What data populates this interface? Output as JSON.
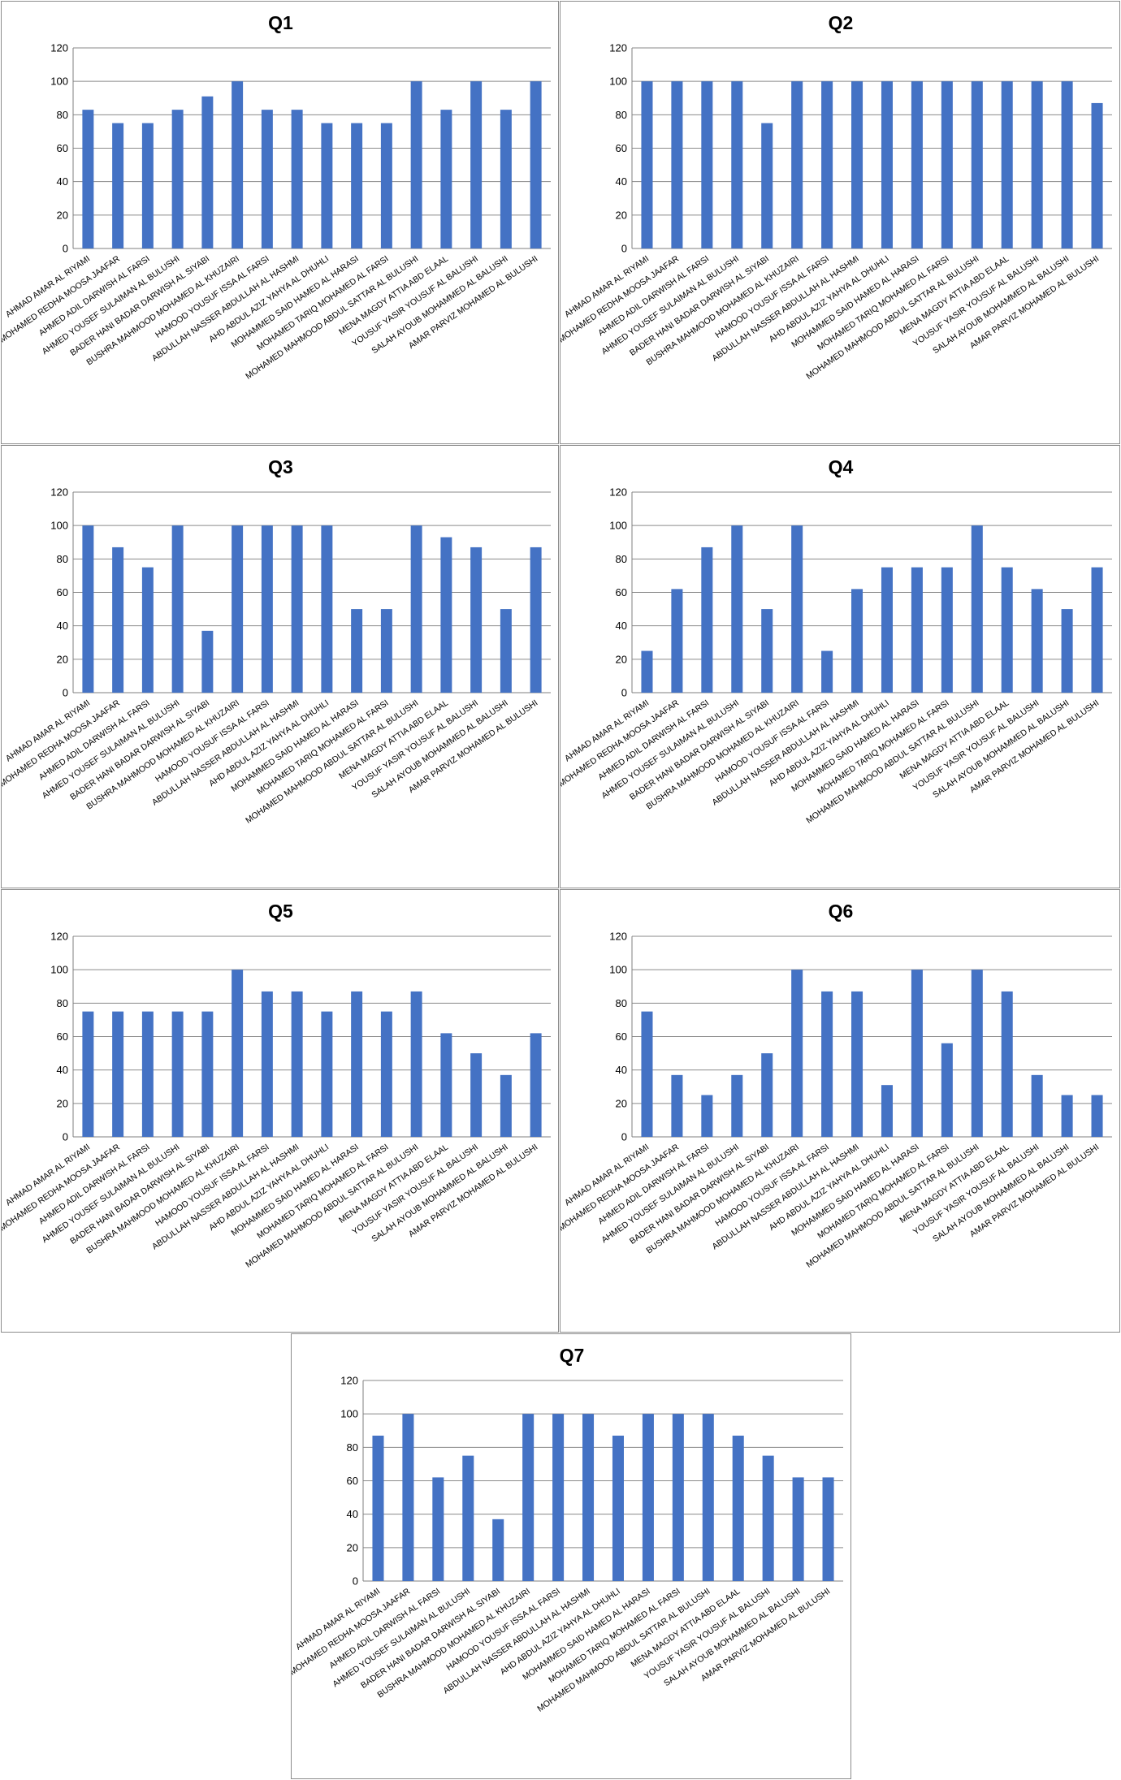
{
  "colors": {
    "bar": "#4472C4",
    "grid": "#8a8a8a",
    "axis": "#7f7f7f",
    "border": "#8c8c8c"
  },
  "chart_data": [
    {
      "type": "bar",
      "title": "Q1",
      "xlabel": "",
      "ylabel": "",
      "ylim": [
        0,
        120
      ],
      "yticks": [
        0,
        20,
        40,
        60,
        80,
        100,
        120
      ],
      "grid": true,
      "legend": "none",
      "categories": [
        "AHMAD AMAR  AL RIYAMI",
        "AHMED MOHAMED REDHA MOOSA JAAFAR",
        "AHMED ADIL DARWISH  AL FARSI",
        "AHMED YOUSEF  SULAIMAN AL BULUSHI",
        "BADER HANI BADAR DARWISH  AL SIYABI",
        "BUSHRA MAHMOOD MOHAMED AL KHUZAIRI",
        "HAMOOD YOUSUF ISSA AL FARSI",
        "ABDULLAH NASSER ABDULLAH AL HASHMI",
        "AHD ABDUL AZIZ  YAHYA  AL DHUHLI",
        "MOHAMMED SAID HAMED AL HARASI",
        "MOHAMED TARIQ MOHAMED AL FARSI",
        "MOHAMED MAHMOOD ABDUL SATTAR  AL BULUSHI",
        "MENA MAGDY ATTIA  ABD  ELAAL",
        "YOUSUF YASIR YOUSUF AL BALUSHI",
        "SALAH AYOUB MOHAMMED  AL BALUSHI",
        "AMAR PARVIZ MOHAMED AL BULUSHI"
      ],
      "values": [
        83,
        75,
        75,
        83,
        91,
        100,
        83,
        83,
        75,
        75,
        75,
        100,
        83,
        100,
        83,
        100
      ]
    },
    {
      "type": "bar",
      "title": "Q2",
      "xlabel": "",
      "ylabel": "",
      "ylim": [
        0,
        120
      ],
      "yticks": [
        0,
        20,
        40,
        60,
        80,
        100,
        120
      ],
      "grid": true,
      "legend": "none",
      "categories": [
        "AHMAD AMAR  AL RIYAMI",
        "AHMED MOHAMED REDHA MOOSA JAAFAR",
        "AHMED ADIL DARWISH  AL FARSI",
        "AHMED YOUSEF  SULAIMAN AL BULUSHI",
        "BADER HANI BADAR DARWISH  AL SIYABI",
        "BUSHRA MAHMOOD MOHAMED AL KHUZAIRI",
        "HAMOOD YOUSUF ISSA AL FARSI",
        "ABDULLAH NASSER ABDULLAH AL HASHMI",
        "AHD ABDUL AZIZ  YAHYA  AL DHUHLI",
        "MOHAMMED SAID HAMED AL HARASI",
        "MOHAMED TARIQ MOHAMED AL FARSI",
        "MOHAMED MAHMOOD ABDUL SATTAR  AL BULUSHI",
        "MENA MAGDY ATTIA  ABD  ELAAL",
        "YOUSUF YASIR YOUSUF AL BALUSHI",
        "SALAH AYOUB MOHAMMED  AL BALUSHI",
        "AMAR PARVIZ MOHAMED AL BULUSHI"
      ],
      "values": [
        100,
        100,
        100,
        100,
        75,
        100,
        100,
        100,
        100,
        100,
        100,
        100,
        100,
        100,
        100,
        87
      ]
    },
    {
      "type": "bar",
      "title": "Q3",
      "xlabel": "",
      "ylabel": "",
      "ylim": [
        0,
        120
      ],
      "yticks": [
        0,
        20,
        40,
        60,
        80,
        100,
        120
      ],
      "grid": true,
      "legend": "none",
      "categories": [
        "AHMAD AMAR  AL RIYAMI",
        "AHMED MOHAMED REDHA MOOSA JAAFAR",
        "AHMED ADIL DARWISH  AL FARSI",
        "AHMED YOUSEF  SULAIMAN AL BULUSHI",
        "BADER HANI BADAR DARWISH  AL SIYABI",
        "BUSHRA MAHMOOD MOHAMED AL KHUZAIRI",
        "HAMOOD YOUSUF ISSA AL FARSI",
        "ABDULLAH NASSER ABDULLAH AL HASHMI",
        "AHD ABDUL AZIZ  YAHYA  AL DHUHLI",
        "MOHAMMED SAID HAMED AL HARASI",
        "MOHAMED TARIQ MOHAMED AL FARSI",
        "MOHAMED MAHMOOD ABDUL SATTAR  AL BULUSHI",
        "MENA MAGDY ATTIA  ABD  ELAAL",
        "YOUSUF YASIR YOUSUF AL BALUSHI",
        "SALAH AYOUB MOHAMMED  AL BALUSHI",
        "AMAR PARVIZ MOHAMED AL BULUSHI"
      ],
      "values": [
        100,
        87,
        75,
        100,
        37,
        100,
        100,
        100,
        100,
        50,
        50,
        100,
        93,
        87,
        50,
        87
      ]
    },
    {
      "type": "bar",
      "title": "Q4",
      "xlabel": "",
      "ylabel": "",
      "ylim": [
        0,
        120
      ],
      "yticks": [
        0,
        20,
        40,
        60,
        80,
        100,
        120
      ],
      "grid": true,
      "legend": "none",
      "categories": [
        "AHMAD AMAR  AL RIYAMI",
        "AHMED MOHAMED REDHA MOOSA JAAFAR",
        "AHMED ADIL DARWISH  AL FARSI",
        "AHMED YOUSEF  SULAIMAN AL BULUSHI",
        "BADER HANI BADAR DARWISH  AL SIYABI",
        "BUSHRA MAHMOOD MOHAMED AL KHUZAIRI",
        "HAMOOD YOUSUF ISSA AL FARSI",
        "ABDULLAH NASSER ABDULLAH AL HASHMI",
        "AHD ABDUL AZIZ  YAHYA  AL DHUHLI",
        "MOHAMMED SAID HAMED AL HARASI",
        "MOHAMED TARIQ MOHAMED AL FARSI",
        "MOHAMED MAHMOOD ABDUL SATTAR  AL BULUSHI",
        "MENA MAGDY ATTIA  ABD  ELAAL",
        "YOUSUF YASIR YOUSUF AL BALUSHI",
        "SALAH AYOUB MOHAMMED  AL BALUSHI",
        "AMAR PARVIZ MOHAMED AL BULUSHI"
      ],
      "values": [
        25,
        62,
        87,
        100,
        50,
        100,
        25,
        62,
        75,
        75,
        75,
        100,
        75,
        62,
        50,
        75
      ]
    },
    {
      "type": "bar",
      "title": "Q5",
      "xlabel": "",
      "ylabel": "",
      "ylim": [
        0,
        120
      ],
      "yticks": [
        0,
        20,
        40,
        60,
        80,
        100,
        120
      ],
      "grid": true,
      "legend": "none",
      "categories": [
        "AHMAD AMAR  AL RIYAMI",
        "AHMED MOHAMED REDHA MOOSA JAAFAR",
        "AHMED ADIL DARWISH  AL FARSI",
        "AHMED YOUSEF  SULAIMAN AL BULUSHI",
        "BADER HANI BADAR DARWISH  AL SIYABI",
        "BUSHRA MAHMOOD MOHAMED AL KHUZAIRI",
        "HAMOOD YOUSUF ISSA AL FARSI",
        "ABDULLAH NASSER ABDULLAH AL HASHMI",
        "AHD ABDUL AZIZ  YAHYA  AL DHUHLI",
        "MOHAMMED SAID HAMED AL HARASI",
        "MOHAMED TARIQ MOHAMED AL FARSI",
        "MOHAMED MAHMOOD ABDUL SATTAR  AL BULUSHI",
        "MENA MAGDY ATTIA  ABD  ELAAL",
        "YOUSUF YASIR YOUSUF AL BALUSHI",
        "SALAH AYOUB MOHAMMED  AL BALUSHI",
        "AMAR PARVIZ MOHAMED AL BULUSHI"
      ],
      "values": [
        75,
        75,
        75,
        75,
        75,
        100,
        87,
        87,
        75,
        87,
        75,
        87,
        62,
        50,
        37,
        62
      ]
    },
    {
      "type": "bar",
      "title": "Q6",
      "xlabel": "",
      "ylabel": "",
      "ylim": [
        0,
        120
      ],
      "yticks": [
        0,
        20,
        40,
        60,
        80,
        100,
        120
      ],
      "grid": true,
      "legend": "none",
      "categories": [
        "AHMAD AMAR  AL RIYAMI",
        "AHMED MOHAMED REDHA MOOSA JAAFAR",
        "AHMED ADIL DARWISH  AL FARSI",
        "AHMED YOUSEF  SULAIMAN AL BULUSHI",
        "BADER HANI BADAR DARWISH  AL SIYABI",
        "BUSHRA MAHMOOD MOHAMED AL KHUZAIRI",
        "HAMOOD YOUSUF ISSA AL FARSI",
        "ABDULLAH NASSER ABDULLAH AL HASHMI",
        "AHD ABDUL AZIZ  YAHYA  AL DHUHLI",
        "MOHAMMED SAID HAMED AL HARASI",
        "MOHAMED TARIQ MOHAMED AL FARSI",
        "MOHAMED MAHMOOD ABDUL SATTAR  AL BULUSHI",
        "MENA MAGDY ATTIA  ABD  ELAAL",
        "YOUSUF YASIR YOUSUF AL BALUSHI",
        "SALAH AYOUB MOHAMMED  AL BALUSHI",
        "AMAR PARVIZ MOHAMED AL BULUSHI"
      ],
      "values": [
        75,
        37,
        25,
        37,
        50,
        100,
        87,
        87,
        31,
        100,
        56,
        100,
        87,
        37,
        25,
        25
      ]
    },
    {
      "type": "bar",
      "title": "Q7",
      "xlabel": "",
      "ylabel": "",
      "ylim": [
        0,
        120
      ],
      "yticks": [
        0,
        20,
        40,
        60,
        80,
        100,
        120
      ],
      "grid": true,
      "legend": "none",
      "categories": [
        "AHMAD AMAR  AL RIYAMI",
        "AHMED MOHAMED REDHA MOOSA JAAFAR",
        "AHMED ADIL DARWISH  AL FARSI",
        "AHMED YOUSEF  SULAIMAN AL BULUSHI",
        "BADER HANI BADAR DARWISH  AL SIYABI",
        "BUSHRA MAHMOOD MOHAMED AL KHUZAIRI",
        "HAMOOD YOUSUF ISSA AL FARSI",
        "ABDULLAH NASSER ABDULLAH AL HASHMI",
        "AHD ABDUL AZIZ  YAHYA  AL DHUHLI",
        "MOHAMMED SAID HAMED AL HARASI",
        "MOHAMED TARIQ MOHAMED AL FARSI",
        "MOHAMED MAHMOOD ABDUL SATTAR  AL BULUSHI",
        "MENA MAGDY ATTIA  ABD  ELAAL",
        "YOUSUF YASIR YOUSUF AL BALUSHI",
        "SALAH AYOUB MOHAMMED  AL BALUSHI",
        "AMAR PARVIZ MOHAMED AL BULUSHI"
      ],
      "values": [
        87,
        100,
        62,
        75,
        37,
        100,
        100,
        100,
        87,
        100,
        100,
        100,
        87,
        75,
        62,
        62
      ]
    }
  ]
}
